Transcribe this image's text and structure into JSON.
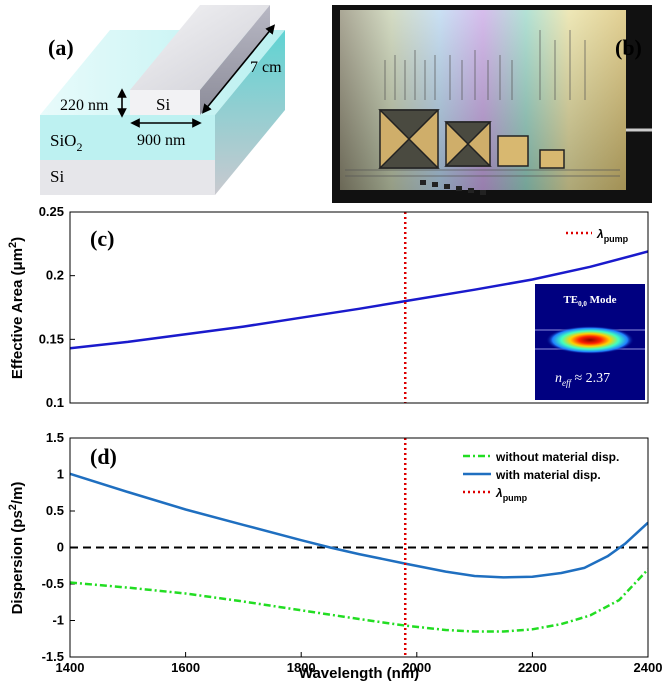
{
  "panel_a": {
    "label": "(a)",
    "core_material": "Si",
    "box_material": "SiO",
    "box_subscript": "2",
    "substrate_material": "Si",
    "height": "220 nm",
    "width": "900 nm",
    "length": "7 cm"
  },
  "panel_b": {
    "label": "(b)"
  },
  "chart_data": [
    {
      "id": "c",
      "type": "line",
      "panel_label": "(c)",
      "xlim": [
        1400,
        2400
      ],
      "ylim": [
        0.1,
        0.25
      ],
      "yticks": [
        0.1,
        0.15,
        0.2,
        0.25
      ],
      "ytick_labels": [
        "0.1",
        "0.15",
        "0.2",
        "0.25"
      ],
      "ylabel": "Effective Area (μm²)",
      "ylabel_main": "Effective Area (μm",
      "ylabel_sup": "2",
      "ylabel_close": ")",
      "series": [
        {
          "color": "#1a1acc",
          "style": "solid",
          "x": [
            1400,
            1500,
            1600,
            1700,
            1800,
            1900,
            1980,
            2100,
            2200,
            2300,
            2400
          ],
          "y": [
            0.143,
            0.148,
            0.154,
            0.16,
            0.167,
            0.174,
            0.18,
            0.189,
            0.197,
            0.207,
            0.219
          ]
        }
      ],
      "vline": {
        "x": 1980,
        "color": "#dd0000"
      },
      "legend": [
        {
          "symbol": "λ",
          "sub": "pump",
          "color": "#dd0000",
          "style": "dotted"
        }
      ],
      "inset": {
        "title": "TE",
        "title_sub": "0,0",
        "title_suffix": " Mode",
        "neff_sym": "n",
        "neff_sub": "eff",
        "neff_value": " ≈ 2.37"
      }
    },
    {
      "id": "d",
      "type": "line",
      "panel_label": "(d)",
      "xlim": [
        1400,
        2400
      ],
      "ylim": [
        -1.5,
        1.5
      ],
      "xticks": [
        1400,
        1600,
        1800,
        2000,
        2200,
        2400
      ],
      "xtick_labels": [
        "1400",
        "1600",
        "1800",
        "2000",
        "2200",
        "2400"
      ],
      "yticks": [
        -1.5,
        -1,
        -0.5,
        0,
        0.5,
        1,
        1.5
      ],
      "ytick_labels": [
        "-1.5",
        "-1",
        "-0.5",
        "0",
        "0.5",
        "1",
        "1.5"
      ],
      "xlabel": "Wavelength (nm)",
      "ylabel_main": "Dispersion (ps",
      "ylabel_sup": "2",
      "ylabel_close": "/m)",
      "series": [
        {
          "name": "without material disp.",
          "color": "#22dd22",
          "style": "dashdot",
          "x": [
            1400,
            1500,
            1600,
            1700,
            1800,
            1900,
            1980,
            2050,
            2100,
            2150,
            2200,
            2250,
            2300,
            2350,
            2400
          ],
          "y": [
            -0.48,
            -0.55,
            -0.63,
            -0.74,
            -0.86,
            -0.98,
            -1.07,
            -1.13,
            -1.15,
            -1.15,
            -1.12,
            -1.05,
            -0.93,
            -0.72,
            -0.3
          ]
        },
        {
          "name": "with material disp.",
          "color": "#1f6fc0",
          "style": "solid",
          "x": [
            1400,
            1500,
            1600,
            1700,
            1800,
            1850,
            1900,
            1980,
            2050,
            2100,
            2150,
            2200,
            2250,
            2290,
            2330,
            2360,
            2400
          ],
          "y": [
            1.01,
            0.76,
            0.52,
            0.31,
            0.1,
            0.0,
            -0.09,
            -0.22,
            -0.33,
            -0.39,
            -0.41,
            -0.4,
            -0.35,
            -0.28,
            -0.12,
            0.05,
            0.34
          ]
        }
      ],
      "zero_line": {
        "y": 0,
        "color": "#000000",
        "style": "dashed"
      },
      "vline": {
        "x": 1980,
        "color": "#dd0000"
      },
      "legend": [
        {
          "label": "without material disp.",
          "color": "#22dd22",
          "style": "dashdot"
        },
        {
          "label": "with material disp.",
          "color": "#1f6fc0",
          "style": "solid"
        },
        {
          "symbol": "λ",
          "sub": "pump",
          "color": "#dd0000",
          "style": "dotted"
        }
      ]
    }
  ]
}
